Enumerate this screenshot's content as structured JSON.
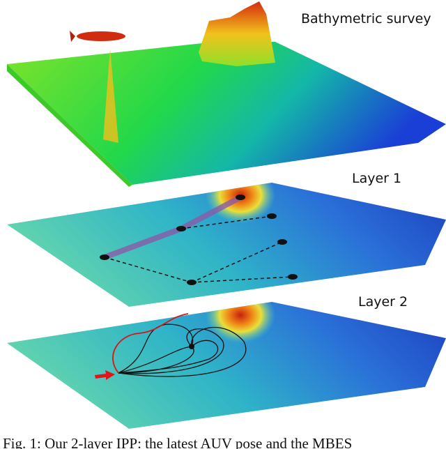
{
  "figure": {
    "labels": [
      "Bathymetric survey",
      "Layer 1",
      "Layer 2"
    ],
    "caption": "Fig. 1: Our 2-layer IPP: the latest AUV pose and the MBES"
  }
}
